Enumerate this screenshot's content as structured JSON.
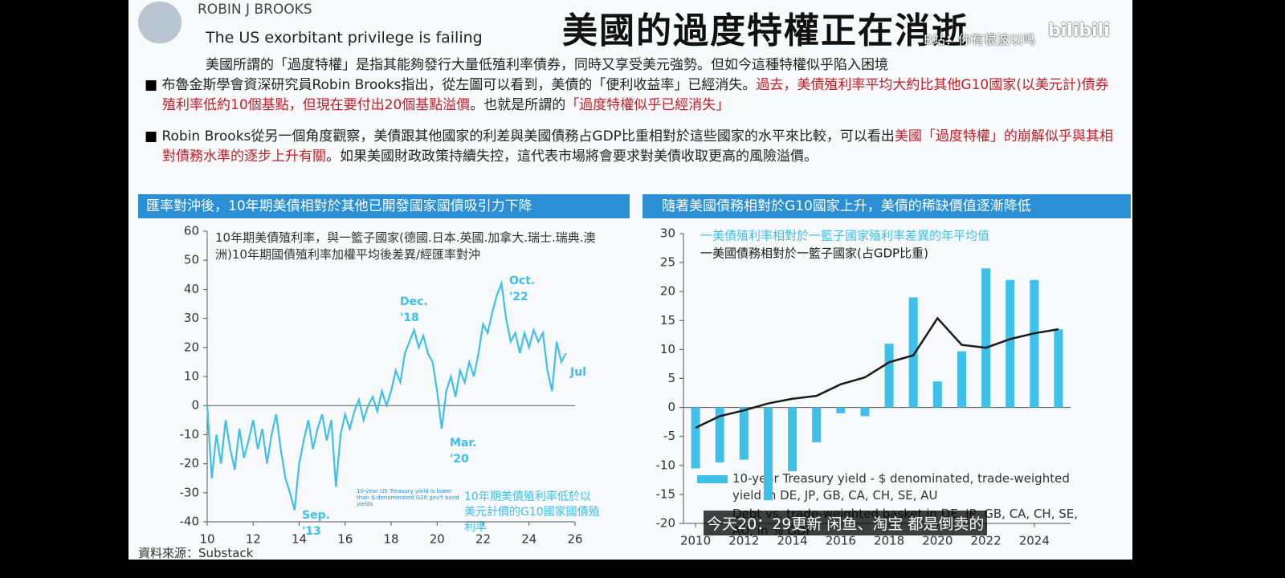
{
  "header": {
    "author": "ROBIN J BROOKS",
    "subtitle": "The US exorbitant privilege is failing",
    "title": "美國的過度特權正在消逝"
  },
  "intro": "美國所謂的「過度特權」是指其能夠發行大量低殖利率債券，同時又享受美元強勢。但如今這種特權似乎陷入困境",
  "bullets": [
    [
      {
        "text": "布魯金斯學會資深研究員Robin Brooks指出，從左圖可以看到，美債的「便利收益率」已經消失。",
        "color": "#222222"
      },
      {
        "text": "過去，美債殖利率平均大約比其他G10國家(以美元計)債券殖利率低約10個基點，但現在要付出20個基點溢價",
        "color": "#c0202a"
      },
      {
        "text": "。也就是所謂的",
        "color": "#222222"
      },
      {
        "text": "「過度特權似乎已經消失」",
        "color": "#c0202a"
      }
    ],
    [
      {
        "text": "Robin Brooks從另一個角度觀察，美債跟其他國家的利差與美國債務占GDP比重相對於這些國家的水平來比較，可以看出",
        "color": "#222222"
      },
      {
        "text": "美國「過度特權」的崩解似乎與其相對債務水準的逐步上升有關",
        "color": "#c0202a"
      },
      {
        "text": "。如果美國財政政策持續失控，這代表市場將會要求對美債收取更高的風險溢價。",
        "color": "#222222"
      }
    ]
  ],
  "source": "資料來源：Substack",
  "overlay": {
    "watermark": "B站：你有根波以吗",
    "caption": "今天20：29更新 闲鱼、淘宝 都是倒卖的",
    "brand": "bilibili"
  },
  "chart_data": [
    {
      "type": "line",
      "heading": "匯率對沖後，10年期美債相對於其他已開發國家國債吸引力下降",
      "legend_text": "10年期美債殖利率，與一籃子國家(德國.日本.英國.加拿大.瑞士.瑞典.澳洲)10年期國債殖利率加權平均後差異/經匯率對沖",
      "note_en": "10-year US Treasury yield is lower than $-denominated G10 gov't bond yields",
      "note_zh": "10年期美債殖利率低於以美元計價的G10國家國債殖利率",
      "annotations": [
        "Dec.\n'18",
        "Oct.\n'22",
        "Mar.\n'20",
        "Sep.\n'13",
        "Jul"
      ],
      "color": "#3fc0e8",
      "x": [
        10.0,
        10.2,
        10.4,
        10.6,
        10.8,
        11.0,
        11.2,
        11.4,
        11.6,
        11.8,
        12.0,
        12.2,
        12.4,
        12.6,
        12.8,
        13.0,
        13.2,
        13.4,
        13.6,
        13.8,
        14.0,
        14.2,
        14.4,
        14.6,
        14.8,
        15.0,
        15.2,
        15.4,
        15.6,
        15.8,
        16.0,
        16.2,
        16.4,
        16.6,
        16.8,
        17.0,
        17.2,
        17.4,
        17.6,
        17.8,
        18.0,
        18.2,
        18.4,
        18.6,
        18.8,
        19.0,
        19.2,
        19.4,
        19.6,
        19.8,
        20.0,
        20.2,
        20.4,
        20.6,
        20.8,
        21.0,
        21.2,
        21.4,
        21.6,
        21.8,
        22.0,
        22.2,
        22.4,
        22.6,
        22.8,
        23.0,
        23.2,
        23.4,
        23.6,
        23.8,
        24.0,
        24.2,
        24.4,
        24.6,
        24.8,
        25.0,
        25.2,
        25.4,
        25.6
      ],
      "values": [
        0,
        -25,
        -10,
        -20,
        -5,
        -15,
        -22,
        -8,
        -18,
        -12,
        -5,
        -15,
        -8,
        -20,
        -10,
        -3,
        -15,
        -25,
        -30,
        -36,
        -20,
        -12,
        -5,
        -15,
        -8,
        -3,
        -12,
        -5,
        -28,
        -10,
        -3,
        -8,
        -2,
        2,
        -5,
        0,
        3,
        -2,
        5,
        0,
        5,
        12,
        8,
        18,
        22,
        26,
        20,
        24,
        18,
        15,
        5,
        -8,
        5,
        10,
        3,
        12,
        8,
        15,
        10,
        18,
        28,
        25,
        32,
        38,
        42,
        30,
        22,
        25,
        18,
        25,
        20,
        26,
        22,
        25,
        12,
        5,
        22,
        15,
        18
      ],
      "xlim": [
        10,
        26
      ],
      "xticks": [
        10,
        12,
        14,
        16,
        18,
        20,
        22,
        24,
        26
      ],
      "ylim": [
        -40,
        60
      ],
      "yticks": [
        -40,
        -30,
        -20,
        -10,
        0,
        10,
        20,
        30,
        40,
        50,
        60
      ]
    },
    {
      "type": "bar-line",
      "heading": "隨著美國債務相對於G10國家上升，美債的稀缺價值逐漸降低",
      "legend_bottom": "10-year Treasury yield - $ denominated, trade-weighted yield in DE, JP, GB, CA, CH, SE, AU",
      "legend_bottom2": "Debt vs. trade-weighted basket in DE, JP, GB, CA, CH, SE, AU, in % GDP",
      "x": [
        2010,
        2011,
        2012,
        2013,
        2014,
        2015,
        2016,
        2017,
        2018,
        2019,
        2020,
        2021,
        2022,
        2023,
        2024,
        2025
      ],
      "series": [
        {
          "name": "一美債殖利率相對於一籃子國家殖利率差異的年平均值",
          "color": "#3fc0e8",
          "values": [
            -10.5,
            -9.5,
            -9,
            -16,
            -11,
            -6,
            -1,
            -1.5,
            11,
            19,
            4.5,
            9.7,
            24,
            22,
            22,
            13.5
          ]
        },
        {
          "name": "一美國債務相對於一籃子國家(占GDP比重)",
          "color": "#1a1a1a",
          "values": [
            -3.5,
            -1.5,
            -0.5,
            0.7,
            1.5,
            2,
            4,
            5.2,
            7.8,
            9,
            15.4,
            10.8,
            10.3,
            11.8,
            12.8,
            13.5
          ]
        }
      ],
      "xlim": [
        2009.5,
        2025.5
      ],
      "xticks": [
        2010,
        2012,
        2014,
        2016,
        2018,
        2020,
        2022,
        2024
      ],
      "ylim": [
        -20,
        30
      ],
      "yticks": [
        -20,
        -15,
        -10,
        -5,
        0,
        5,
        10,
        15,
        20,
        25,
        30
      ]
    }
  ]
}
